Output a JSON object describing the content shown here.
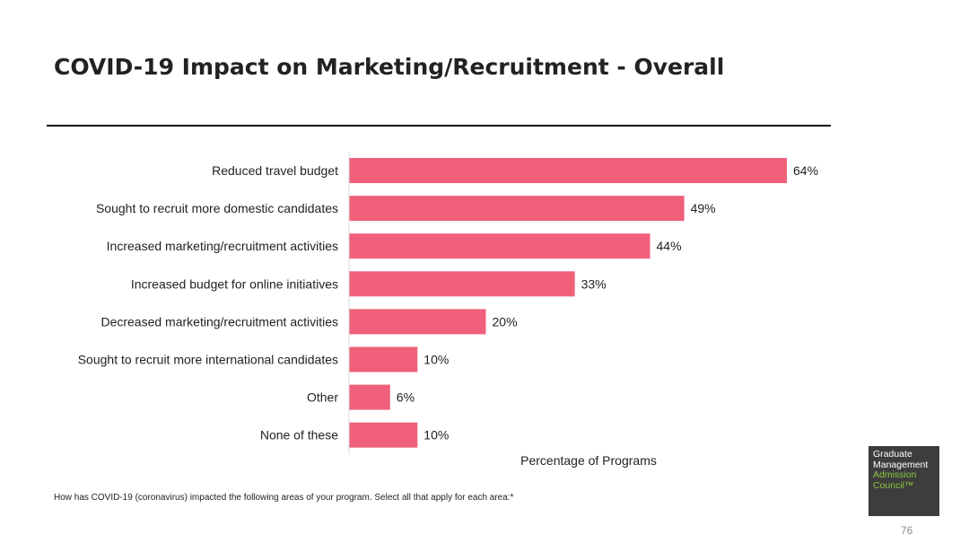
{
  "slide": {
    "title": "COVID-19 Impact on Marketing/Recruitment - Overall",
    "footnote": "How has COVID-19 (coronavirus) impacted the following areas of your program. Select all that apply for each area:*",
    "page_number": "76"
  },
  "logo": {
    "line1": "Graduate",
    "line2": "Management",
    "line3": "Admission",
    "line4": "Council™"
  },
  "colors": {
    "bar": "#f0607a",
    "accent_green": "#8cc63f",
    "logo_bg": "#3d3d3d"
  },
  "chart_data": {
    "type": "bar",
    "orientation": "horizontal",
    "title": "COVID-19 Impact on Marketing/Recruitment - Overall",
    "xlabel": "Percentage of Programs",
    "ylabel": "",
    "xlim": [
      0,
      70
    ],
    "categories": [
      "Reduced travel budget",
      "Sought to recruit more domestic candidates",
      "Increased marketing/recruitment activities",
      "Increased budget for online initiatives",
      "Decreased marketing/recruitment activities",
      "Sought to recruit more international candidates",
      "Other",
      "None of these"
    ],
    "values": [
      64,
      49,
      44,
      33,
      20,
      10,
      6,
      10
    ],
    "value_labels": [
      "64%",
      "49%",
      "44%",
      "33%",
      "20%",
      "10%",
      "6%",
      "10%"
    ]
  }
}
